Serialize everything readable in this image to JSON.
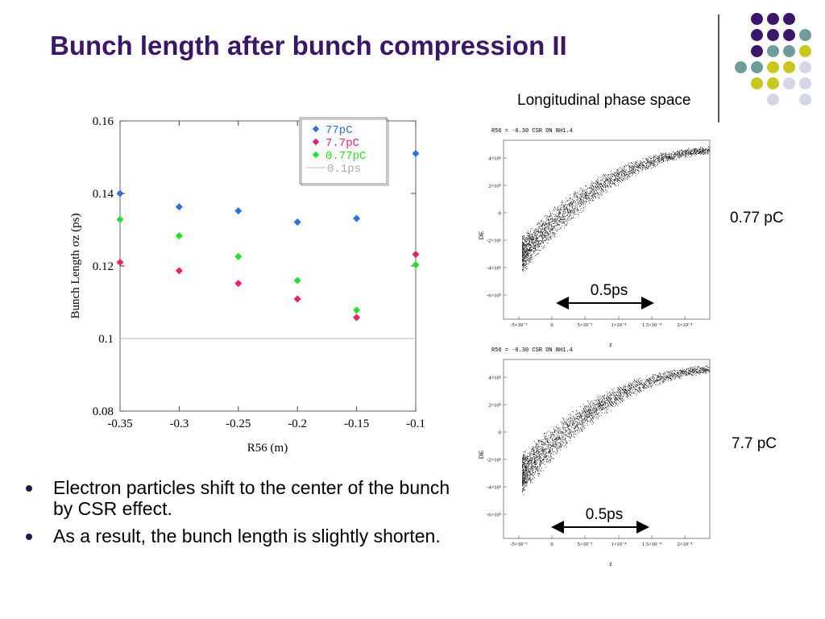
{
  "slide": {
    "title": "Bunch length after bunch compression II",
    "bullets": [
      "Electron particles shift to the center of the bunch by CSR effect.",
      "As a result, the bunch length is slightly shorten."
    ],
    "decor_colors": [
      "#3b1769",
      "#6f9c9a",
      "#c9c81a",
      "#d5d5e8"
    ]
  },
  "chart_data": [
    {
      "type": "scatter",
      "title": "",
      "xlabel": "R56 (m)",
      "ylabel": "Bunch Length σz (ps)",
      "xlim": [
        -0.35,
        -0.1
      ],
      "ylim": [
        0.08,
        0.16
      ],
      "xticks": [
        "-0.35",
        "-0.3",
        "-0.25",
        "-0.2",
        "-0.15",
        "-0.1"
      ],
      "yticks": [
        "0.08",
        "0.1",
        "0.12",
        "0.14",
        "0.16"
      ],
      "legend_position": "top-right",
      "series": [
        {
          "name": "77pC",
          "color": "#2f6fe0",
          "x": [
            -0.35,
            -0.3,
            -0.25,
            -0.2,
            -0.15,
            -0.1
          ],
          "y": [
            0.14,
            0.1363,
            0.1352,
            0.1321,
            0.1331,
            0.151
          ]
        },
        {
          "name": "7.7pC",
          "color": "#e8216c",
          "x": [
            -0.35,
            -0.3,
            -0.25,
            -0.2,
            -0.15,
            -0.1
          ],
          "y": [
            0.121,
            0.1187,
            0.1152,
            0.1109,
            0.1058,
            0.1232
          ]
        },
        {
          "name": "0.77pC",
          "color": "#23e02a",
          "x": [
            -0.35,
            -0.3,
            -0.25,
            -0.2,
            -0.15,
            -0.1
          ],
          "y": [
            0.1328,
            0.1283,
            0.1226,
            0.116,
            0.1078,
            0.1203
          ]
        }
      ],
      "reference_line": {
        "name": "0.1ps",
        "y": 0.1,
        "color": "#bbbbbb"
      }
    },
    {
      "type": "scatter",
      "title": "Longitudinal phase space",
      "header": "R56 = -0.30 CSR ON BH1.4",
      "xlabel": "z",
      "ylabel": "DE",
      "xticks": [
        "-5×10⁻⁵",
        "0",
        "5×10⁻⁵",
        "1×10⁻⁴",
        "1.5×10⁻⁴",
        "2×10⁻⁴"
      ],
      "yticks": [
        "4×10⁵",
        "2×10⁵",
        "0",
        "-2×10⁵",
        "-4×10⁵",
        "-6×10⁵"
      ],
      "charge_label": "0.77 pC",
      "scale_label": "0.5ps"
    },
    {
      "type": "scatter",
      "header": "R56 = -0.30 CSR ON BH1.4",
      "xlabel": "z",
      "ylabel": "DE",
      "xticks": [
        "-5×10⁻⁵",
        "0",
        "5×10⁻⁵",
        "1×10⁻⁴",
        "1.5×10⁻⁴",
        "2×10⁻⁴"
      ],
      "yticks": [
        "4×10⁵",
        "2×10⁵",
        "0",
        "-2×10⁵",
        "-4×10⁵",
        "-6×10⁵"
      ],
      "charge_label": "7.7 pC",
      "scale_label": "0.5ps"
    }
  ]
}
